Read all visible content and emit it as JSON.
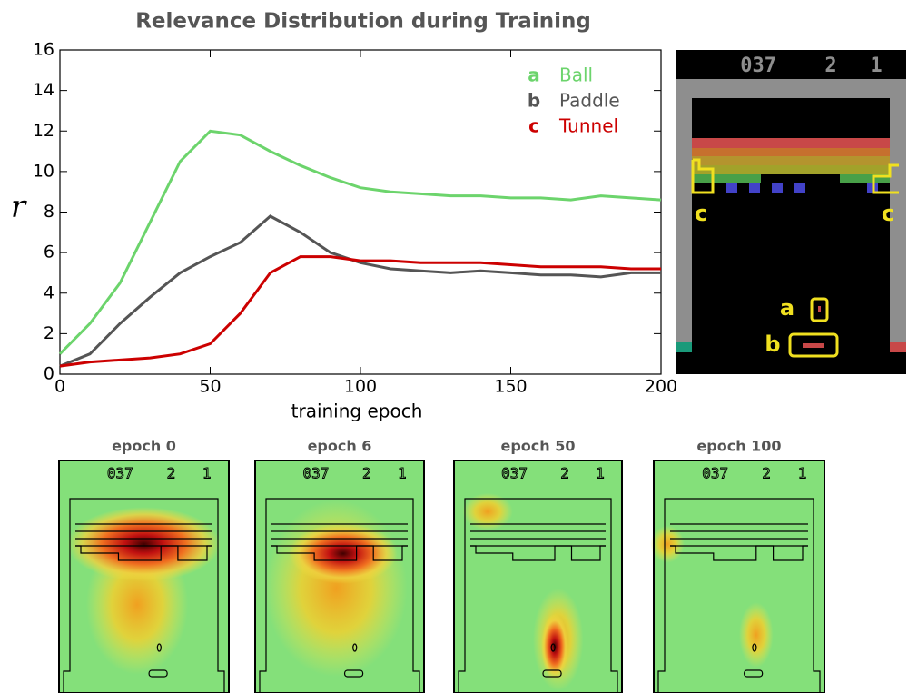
{
  "chart_data": {
    "type": "line",
    "title": "Relevance Distribution during Training",
    "x_label": "training epoch",
    "y_label": "r",
    "x": [
      0,
      10,
      20,
      30,
      40,
      50,
      60,
      70,
      80,
      90,
      100,
      110,
      120,
      130,
      140,
      150,
      160,
      170,
      180,
      190,
      200
    ],
    "series": [
      {
        "key": "a",
        "name": "Ball",
        "color": "#6cd46c",
        "values": [
          1.0,
          2.5,
          4.5,
          7.5,
          10.5,
          12.0,
          11.8,
          11.0,
          10.3,
          9.7,
          9.2,
          9.0,
          8.9,
          8.8,
          8.8,
          8.7,
          8.7,
          8.6,
          8.8,
          8.7,
          8.6
        ]
      },
      {
        "key": "b",
        "name": "Paddle",
        "color": "#555555",
        "values": [
          0.4,
          1.0,
          2.5,
          3.8,
          5.0,
          5.8,
          6.5,
          7.8,
          7.0,
          6.0,
          5.5,
          5.2,
          5.1,
          5.0,
          5.1,
          5.0,
          4.9,
          4.9,
          4.8,
          5.0,
          5.0
        ]
      },
      {
        "key": "c",
        "name": "Tunnel",
        "color": "#cc0000",
        "values": [
          0.4,
          0.6,
          0.7,
          0.8,
          1.0,
          1.5,
          3.0,
          5.0,
          5.8,
          5.8,
          5.6,
          5.6,
          5.5,
          5.5,
          5.5,
          5.4,
          5.3,
          5.3,
          5.3,
          5.2,
          5.2
        ]
      }
    ],
    "xlim": [
      0,
      200
    ],
    "xticks": [
      0,
      50,
      100,
      150,
      200
    ],
    "ylim": [
      0,
      16
    ],
    "yticks": [
      0,
      2,
      4,
      6,
      8,
      10,
      12,
      14,
      16
    ],
    "legend": "upper right"
  },
  "game": {
    "score": "037",
    "lives": "2",
    "level": "1",
    "labels": [
      "a",
      "b",
      "c",
      "c"
    ]
  },
  "heatmaps": [
    {
      "title": "epoch 0",
      "score": "037",
      "lives": "2",
      "level": "1"
    },
    {
      "title": "epoch 6",
      "score": "037",
      "lives": "2",
      "level": "1"
    },
    {
      "title": "epoch 50",
      "score": "037",
      "lives": "2",
      "level": "1"
    },
    {
      "title": "epoch 100",
      "score": "037",
      "lives": "2",
      "level": "1"
    }
  ]
}
